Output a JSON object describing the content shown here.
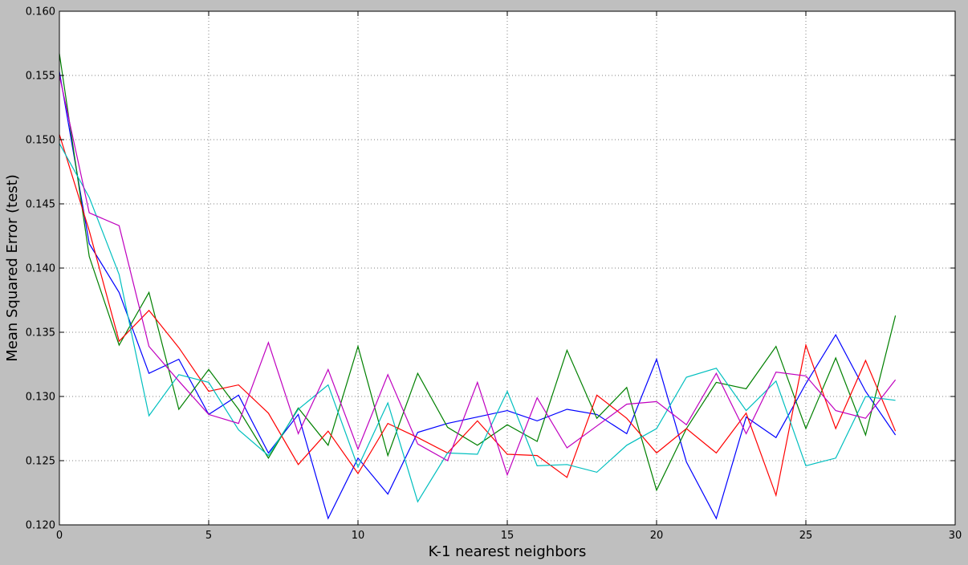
{
  "chart_data": {
    "type": "line",
    "title": "",
    "xlabel": "K-1 nearest neighbors",
    "ylabel": "Mean Squared Error (test)",
    "xlim": [
      0,
      30
    ],
    "ylim": [
      0.12,
      0.16
    ],
    "xticks": [
      "0",
      "5",
      "10",
      "15",
      "20",
      "25",
      "30"
    ],
    "yticks": [
      "0.120",
      "0.125",
      "0.130",
      "0.135",
      "0.140",
      "0.145",
      "0.150",
      "0.155",
      "0.160"
    ],
    "grid": true,
    "x": [
      0,
      1,
      2,
      3,
      4,
      5,
      6,
      7,
      8,
      9,
      10,
      11,
      12,
      13,
      14,
      15,
      16,
      17,
      18,
      19,
      20,
      21,
      22,
      23,
      24,
      25,
      26,
      27,
      28
    ],
    "series": [
      {
        "color": "#0000ff",
        "values": [
          0.1553,
          0.1419,
          0.1381,
          0.1318,
          0.1329,
          0.1286,
          0.1301,
          0.1256,
          0.1286,
          0.1205,
          0.1252,
          0.1224,
          0.1272,
          0.1279,
          0.1284,
          0.1289,
          0.1281,
          0.129,
          0.1286,
          0.1271,
          0.1329,
          0.1249,
          0.1205,
          0.1284,
          0.1268,
          0.131,
          0.1348,
          0.1304,
          0.127
        ]
      },
      {
        "color": "#008000",
        "values": [
          0.1567,
          0.1409,
          0.134,
          0.1381,
          0.129,
          0.1321,
          0.129,
          0.1252,
          0.1291,
          0.1262,
          0.1339,
          0.1254,
          0.1318,
          0.1276,
          0.1262,
          0.1278,
          0.1265,
          0.1336,
          0.1283,
          0.1307,
          0.1227,
          0.1275,
          0.1311,
          0.1306,
          0.1339,
          0.1275,
          0.133,
          0.127,
          0.1363
        ]
      },
      {
        "color": "#ff0000",
        "values": [
          0.1504,
          0.1429,
          0.1343,
          0.1367,
          0.1338,
          0.1304,
          0.1309,
          0.1287,
          0.1247,
          0.1273,
          0.124,
          0.1279,
          0.1268,
          0.1256,
          0.1281,
          0.1255,
          0.1254,
          0.1237,
          0.1301,
          0.1283,
          0.1256,
          0.1275,
          0.1256,
          0.1287,
          0.1223,
          0.134,
          0.1275,
          0.1328,
          0.1273
        ]
      },
      {
        "color": "#00bfbf",
        "values": [
          0.1497,
          0.1455,
          0.1395,
          0.1285,
          0.1317,
          0.1311,
          0.1274,
          0.1254,
          0.129,
          0.1309,
          0.1245,
          0.1295,
          0.1218,
          0.1256,
          0.1255,
          0.1304,
          0.1246,
          0.1247,
          0.1241,
          0.1262,
          0.1275,
          0.1315,
          0.1322,
          0.1289,
          0.1312,
          0.1246,
          0.1252,
          0.13,
          0.1297
        ]
      },
      {
        "color": "#bf00bf",
        "values": [
          0.155,
          0.1443,
          0.1433,
          0.1339,
          0.1312,
          0.1286,
          0.1279,
          0.1342,
          0.1271,
          0.1321,
          0.1259,
          0.1317,
          0.1263,
          0.125,
          0.1311,
          0.1239,
          0.1299,
          0.126,
          0.1277,
          0.1294,
          0.1296,
          0.1278,
          0.1318,
          0.1271,
          0.1319,
          0.1316,
          0.1289,
          0.1283,
          0.1313
        ]
      }
    ]
  }
}
